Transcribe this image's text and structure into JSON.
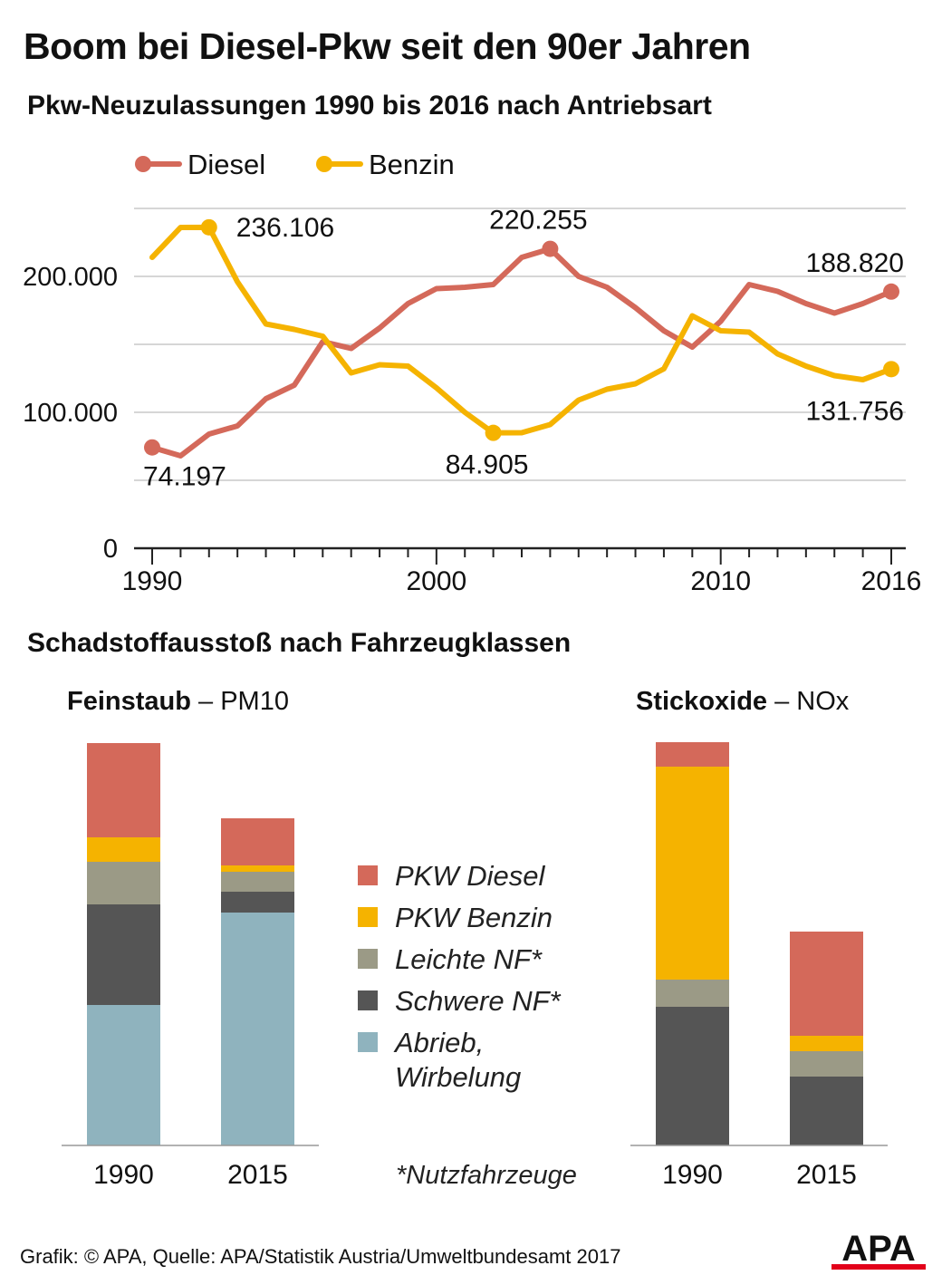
{
  "title": "Boom bei Diesel-Pkw seit den 90er Jahren",
  "subtitle": "Pkw-Neuzulassungen 1990 bis 2016 nach Antriebsart",
  "section2_title": "Schadstoffausstoß nach Fahrzeugklassen",
  "footnote": "*Nutzfahrzeuge",
  "credit": "Grafik: © APA, Quelle: APA/Statistik Austria/Umweltbundesamt 2017",
  "logo_text": "APA",
  "colors": {
    "diesel": "#d4695a",
    "benzin": "#f5b300",
    "leichte_nf": "#9b9a86",
    "schwere_nf": "#555555",
    "abrieb": "#8fb3be",
    "grid": "#c8c8c8"
  },
  "chart_data": [
    {
      "type": "line",
      "x": [
        1990,
        1991,
        1992,
        1993,
        1994,
        1995,
        1996,
        1997,
        1998,
        1999,
        2000,
        2001,
        2002,
        2003,
        2004,
        2005,
        2006,
        2007,
        2008,
        2009,
        2010,
        2011,
        2012,
        2013,
        2014,
        2015,
        2016
      ],
      "series": [
        {
          "name": "Diesel",
          "color": "#d4695a",
          "values": [
            74197,
            68000,
            84000,
            90000,
            110000,
            120000,
            152000,
            147000,
            162000,
            180000,
            191000,
            192000,
            194000,
            214000,
            220255,
            200000,
            192000,
            177000,
            160000,
            148000,
            167000,
            194000,
            189000,
            180000,
            173000,
            180000,
            188820
          ]
        },
        {
          "name": "Benzin",
          "color": "#f5b300",
          "values": [
            214000,
            236000,
            236106,
            196000,
            165000,
            161000,
            156000,
            129000,
            135000,
            134000,
            118000,
            100000,
            84905,
            85000,
            91000,
            109000,
            117000,
            121000,
            132000,
            171000,
            160000,
            159000,
            143000,
            134000,
            127000,
            124000,
            131756
          ]
        }
      ],
      "annotations": [
        {
          "series": "Diesel",
          "x": 1990,
          "label": "74.197"
        },
        {
          "series": "Benzin",
          "x": 1992,
          "label": "236.106"
        },
        {
          "series": "Diesel",
          "x": 2004,
          "label": "220.255"
        },
        {
          "series": "Benzin",
          "x": 2002,
          "label": "84.905"
        },
        {
          "series": "Diesel",
          "x": 2016,
          "label": "188.820"
        },
        {
          "series": "Benzin",
          "x": 2016,
          "label": "131.756"
        }
      ],
      "y_ticks": [
        {
          "value": 0,
          "label": "0"
        },
        {
          "value": 100000,
          "label": "100.000"
        },
        {
          "value": 200000,
          "label": "200.000"
        }
      ],
      "x_tick_labels": [
        {
          "value": 1990,
          "label": "1990"
        },
        {
          "value": 2000,
          "label": "2000"
        },
        {
          "value": 2010,
          "label": "2010"
        },
        {
          "value": 2016,
          "label": "2016"
        }
      ],
      "ylim": [
        0,
        250000
      ],
      "xlim": [
        1990,
        2016
      ],
      "grid": true,
      "legend_position": "top-left"
    },
    {
      "type": "bar",
      "stacked": true,
      "title_bold": "Feinstaub",
      "title_rest": " – PM10",
      "categories": [
        "1990",
        "2015"
      ],
      "series": [
        {
          "name": "Abrieb, Wirbelung",
          "color": "#8fb3be",
          "values": [
            155,
            257
          ]
        },
        {
          "name": "Schwere NF*",
          "color": "#555555",
          "values": [
            111,
            23
          ]
        },
        {
          "name": "Leichte NF*",
          "color": "#9b9a86",
          "values": [
            47,
            22
          ]
        },
        {
          "name": "PKW Benzin",
          "color": "#f5b300",
          "values": [
            27,
            7
          ]
        },
        {
          "name": "PKW Diesel",
          "color": "#d4695a",
          "values": [
            104,
            52
          ]
        }
      ]
    },
    {
      "type": "bar",
      "stacked": true,
      "title_bold": "Stickoxide",
      "title_rest": " – NOx",
      "categories": [
        "1990",
        "2015"
      ],
      "series": [
        {
          "name": "Abrieb, Wirbelung",
          "color": "#8fb3be",
          "values": [
            0,
            0
          ]
        },
        {
          "name": "Schwere NF*",
          "color": "#555555",
          "values": [
            153,
            76
          ]
        },
        {
          "name": "Leichte NF*",
          "color": "#9b9a86",
          "values": [
            30,
            28
          ]
        },
        {
          "name": "PKW Benzin",
          "color": "#f5b300",
          "values": [
            235,
            17
          ]
        },
        {
          "name": "PKW Diesel",
          "color": "#d4695a",
          "values": [
            27,
            115
          ]
        }
      ]
    }
  ],
  "bar_legend": [
    {
      "lines": [
        "PKW Diesel"
      ],
      "color": "#d4695a"
    },
    {
      "lines": [
        "PKW Benzin"
      ],
      "color": "#f5b300"
    },
    {
      "lines": [
        "Leichte NF*"
      ],
      "color": "#9b9a86"
    },
    {
      "lines": [
        "Schwere NF*"
      ],
      "color": "#555555"
    },
    {
      "lines": [
        "Abrieb,",
        "Wirbelung"
      ],
      "color": "#8fb3be"
    }
  ]
}
